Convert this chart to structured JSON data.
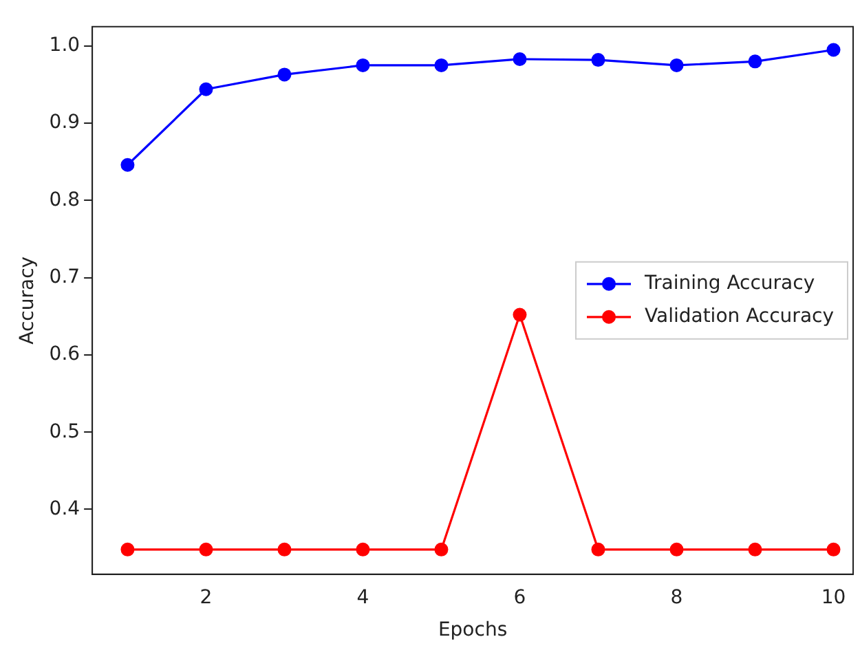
{
  "chart_data": {
    "type": "line",
    "xlabel": "Epochs",
    "ylabel": "Accuracy",
    "x": [
      1,
      2,
      3,
      4,
      5,
      6,
      7,
      8,
      9,
      10
    ],
    "series": [
      {
        "name": "Training Accuracy",
        "color": "#0000ff",
        "values": [
          0.846,
          0.944,
          0.963,
          0.975,
          0.975,
          0.983,
          0.982,
          0.975,
          0.98,
          0.995
        ]
      },
      {
        "name": "Validation Accuracy",
        "color": "#ff0000",
        "values": [
          0.348,
          0.348,
          0.348,
          0.348,
          0.348,
          0.652,
          0.348,
          0.348,
          0.348,
          0.348
        ]
      }
    ],
    "xlim": [
      0.55,
      10.25
    ],
    "xticks": [
      2,
      4,
      6,
      8,
      10
    ],
    "ylim": [
      0.316,
      1.025
    ],
    "yticks": [
      0.4,
      0.5,
      0.6,
      0.7,
      0.8,
      0.9,
      {
        "value": 1.0,
        "label": "1.0"
      }
    ],
    "grid": false,
    "legend": "center right",
    "marker": "circle",
    "line_style": "solid"
  }
}
